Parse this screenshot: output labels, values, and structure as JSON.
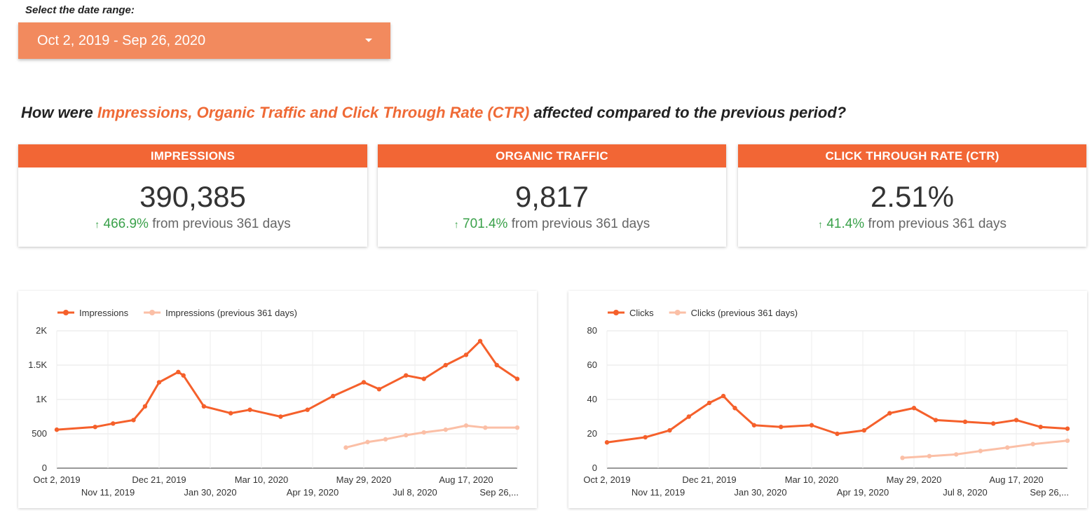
{
  "date_range": {
    "label": "Select the date range:",
    "value": "Oct 2, 2019 - Sep 26, 2020"
  },
  "question": {
    "prefix": "How were ",
    "highlight": "Impressions, Organic Traffic and Click Through Rate (CTR)",
    "suffix": " affected compared to the previous period?"
  },
  "kpis": [
    {
      "title": "IMPRESSIONS",
      "value": "390,385",
      "change_pct": "466.9%",
      "change_text": "from previous 361 days",
      "arrow": "↑"
    },
    {
      "title": "ORGANIC TRAFFIC",
      "value": "9,817",
      "change_pct": "701.4%",
      "change_text": "from previous 361 days",
      "arrow": "↑"
    },
    {
      "title": "CLICK THROUGH RATE (CTR)",
      "value": "2.51%",
      "change_pct": "41.4%",
      "change_text": "from previous 361 days",
      "arrow": "↑"
    }
  ],
  "colors": {
    "primary": "#f5602b",
    "previous": "#fbbfa6",
    "accent": "#f28a5e",
    "header": "#f26635",
    "positive": "#3aa14a"
  },
  "chart_data": [
    {
      "type": "line",
      "series": [
        {
          "name": "Impressions",
          "color": "#f5602b",
          "x": [
            "2019-10-02",
            "2019-11-01",
            "2019-11-15",
            "2019-12-01",
            "2019-12-10",
            "2019-12-21",
            "2020-01-05",
            "2020-01-09",
            "2020-01-25",
            "2020-02-15",
            "2020-03-01",
            "2020-03-25",
            "2020-04-15",
            "2020-05-05",
            "2020-05-29",
            "2020-06-10",
            "2020-07-01",
            "2020-07-15",
            "2020-08-01",
            "2020-08-17",
            "2020-08-28",
            "2020-09-10",
            "2020-09-26"
          ],
          "values": [
            560,
            600,
            650,
            700,
            900,
            1250,
            1400,
            1350,
            900,
            800,
            850,
            750,
            850,
            1050,
            1250,
            1150,
            1350,
            1300,
            1500,
            1650,
            1850,
            1500,
            1300
          ]
        },
        {
          "name": "Impressions (previous 361 days)",
          "color": "#fbbfa6",
          "x": [
            "2020-05-15",
            "2020-06-01",
            "2020-06-15",
            "2020-07-01",
            "2020-07-15",
            "2020-08-01",
            "2020-08-17",
            "2020-09-01",
            "2020-09-26"
          ],
          "values": [
            300,
            380,
            420,
            480,
            520,
            560,
            620,
            590,
            590
          ]
        }
      ],
      "y_ticks": [
        "0",
        "500",
        "1K",
        "1.5K",
        "2K"
      ],
      "ylim": [
        0,
        2000
      ],
      "x_ticks_top": [
        "Oct 2, 2019",
        "Dec 21, 2019",
        "Mar 10, 2020",
        "May 29, 2020",
        "Aug 17, 2020"
      ],
      "x_ticks_bottom": [
        "Nov 11, 2019",
        "Jan 30, 2020",
        "Apr 19, 2020",
        "Jul 8, 2020",
        "Sep 26,..."
      ],
      "legend_position": "top-left",
      "grid": true
    },
    {
      "type": "line",
      "series": [
        {
          "name": "Clicks",
          "color": "#f5602b",
          "x": [
            "2019-10-02",
            "2019-11-01",
            "2019-11-20",
            "2019-12-05",
            "2019-12-21",
            "2020-01-01",
            "2020-01-10",
            "2020-01-25",
            "2020-02-15",
            "2020-03-10",
            "2020-03-30",
            "2020-04-20",
            "2020-05-10",
            "2020-05-29",
            "2020-06-15",
            "2020-07-08",
            "2020-07-30",
            "2020-08-17",
            "2020-09-05",
            "2020-09-26"
          ],
          "values": [
            15,
            18,
            22,
            30,
            38,
            42,
            35,
            25,
            24,
            25,
            20,
            22,
            32,
            35,
            28,
            27,
            26,
            28,
            24,
            23
          ]
        },
        {
          "name": "Clicks (previous 361 days)",
          "color": "#fbbfa6",
          "x": [
            "2020-05-20",
            "2020-06-10",
            "2020-07-01",
            "2020-07-20",
            "2020-08-10",
            "2020-08-30",
            "2020-09-26"
          ],
          "values": [
            6,
            7,
            8,
            10,
            12,
            14,
            16
          ]
        }
      ],
      "y_ticks": [
        "0",
        "20",
        "40",
        "60",
        "80"
      ],
      "ylim": [
        0,
        80
      ],
      "x_ticks_top": [
        "Oct 2, 2019",
        "Dec 21, 2019",
        "Mar 10, 2020",
        "May 29, 2020",
        "Aug 17, 2020"
      ],
      "x_ticks_bottom": [
        "Nov 11, 2019",
        "Jan 30, 2020",
        "Apr 19, 2020",
        "Jul 8, 2020",
        "Sep 26,..."
      ],
      "legend_position": "top-left",
      "grid": true
    }
  ]
}
